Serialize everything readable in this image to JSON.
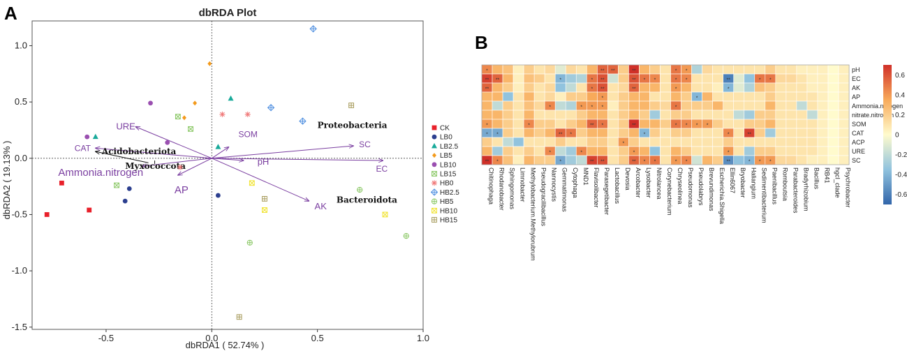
{
  "panel_a": {
    "letter": "A",
    "title": "dbRDA Plot",
    "xlabel": "dbRDA1 ( 52.74% )",
    "ylabel": "dbRDA2 ( 19.13% )",
    "xticks": [
      "-0.5",
      "0.0",
      "0.5",
      "1.0"
    ],
    "yticks": [
      "1.0",
      "0.5",
      "0.0",
      "-0.5",
      "-1.0",
      "-1.5"
    ]
  },
  "panel_b": {
    "letter": "B"
  },
  "chart_data": [
    {
      "type": "scatter",
      "title": "dbRDA Plot",
      "xlabel": "dbRDA1 ( 52.74% )",
      "ylabel": "dbRDA2 ( 19.13% )",
      "xlim": [
        -0.85,
        1.0
      ],
      "ylim": [
        -1.52,
        1.22
      ],
      "xtick_values": [
        -0.5,
        0.0,
        0.5,
        1.0
      ],
      "ytick_values": [
        1.0,
        0.5,
        0.0,
        -0.5,
        -1.0,
        -1.5
      ],
      "legend_position": "right",
      "series": [
        {
          "name": "CK",
          "color": "#e8202a",
          "marker": "square",
          "points": [
            [
              -0.78,
              -0.5
            ],
            [
              -0.71,
              -0.22
            ],
            [
              -0.58,
              -0.46
            ]
          ]
        },
        {
          "name": "LB0",
          "color": "#2c3f8f",
          "marker": "circle",
          "points": [
            [
              -0.39,
              -0.27
            ],
            [
              -0.41,
              -0.38
            ],
            [
              0.03,
              -0.33
            ]
          ]
        },
        {
          "name": "LB2.5",
          "color": "#19aa9a",
          "marker": "triangle",
          "points": [
            [
              -0.55,
              0.19
            ],
            [
              0.09,
              0.53
            ],
            [
              0.03,
              0.1
            ]
          ]
        },
        {
          "name": "LB5",
          "color": "#f39a1c",
          "marker": "diamond",
          "points": [
            [
              -0.01,
              0.84
            ],
            [
              -0.13,
              0.36
            ],
            [
              -0.08,
              0.49
            ]
          ]
        },
        {
          "name": "LB10",
          "color": "#9a4fb0",
          "marker": "circle",
          "points": [
            [
              -0.29,
              0.49
            ],
            [
              -0.59,
              0.19
            ],
            [
              -0.21,
              0.14
            ]
          ]
        },
        {
          "name": "LB15",
          "color": "#89c764",
          "marker": "square-x",
          "points": [
            [
              -0.16,
              0.37
            ],
            [
              -0.1,
              0.26
            ],
            [
              -0.45,
              -0.24
            ]
          ]
        },
        {
          "name": "HB0",
          "color": "#f07a7a",
          "marker": "asterisk",
          "points": [
            [
              0.05,
              0.39
            ],
            [
              0.17,
              0.39
            ],
            [
              -0.15,
              -0.08
            ]
          ]
        },
        {
          "name": "HB2.5",
          "color": "#4f8fe0",
          "marker": "diamond-plus",
          "points": [
            [
              0.48,
              1.15
            ],
            [
              0.28,
              0.45
            ],
            [
              0.43,
              0.33
            ]
          ]
        },
        {
          "name": "HB5",
          "color": "#89c764",
          "marker": "circle-plus",
          "points": [
            [
              0.7,
              -0.28
            ],
            [
              0.92,
              -0.69
            ],
            [
              0.18,
              -0.75
            ]
          ]
        },
        {
          "name": "HB10",
          "color": "#f0e22a",
          "marker": "square-x",
          "points": [
            [
              0.19,
              -0.22
            ],
            [
              0.25,
              -0.46
            ],
            [
              0.82,
              -0.5
            ]
          ]
        },
        {
          "name": "HB15",
          "color": "#a69a5a",
          "marker": "square-plus",
          "points": [
            [
              0.66,
              0.47
            ],
            [
              0.25,
              -0.36
            ],
            [
              0.13,
              -1.41
            ]
          ]
        }
      ],
      "env_vectors": [
        {
          "label": "URE",
          "x": -0.36,
          "y": 0.28
        },
        {
          "label": "CAT",
          "x": -0.55,
          "y": 0.09
        },
        {
          "label": "Ammonia.nitrogen",
          "x": -0.33,
          "y": -0.07
        },
        {
          "label": "AP",
          "x": -0.16,
          "y": -0.15
        },
        {
          "label": "SOM",
          "x": 0.08,
          "y": 0.1
        },
        {
          "label": "pH",
          "x": 0.15,
          "y": -0.02
        },
        {
          "label": "SC",
          "x": 0.67,
          "y": 0.11
        },
        {
          "label": "EC",
          "x": 0.81,
          "y": -0.02
        },
        {
          "label": "AK",
          "x": 0.46,
          "y": -0.38
        }
      ],
      "taxa_labels": [
        {
          "label": "Proteobacteria",
          "x": 0.5,
          "y": 0.3
        },
        {
          "label": "Acidobacteriota",
          "x": -0.52,
          "y": 0.06
        },
        {
          "label": "Myxococcota",
          "x": -0.41,
          "y": -0.07
        },
        {
          "label": "Bacteroidota",
          "x": 0.59,
          "y": -0.37
        }
      ]
    },
    {
      "type": "heatmap",
      "rows": [
        "pH",
        "EC",
        "AK",
        "AP",
        "Ammonia.nitrogen",
        "nitrate.nitrogen",
        "SOM",
        "CAT",
        "ACP",
        "URE",
        "SC"
      ],
      "columns": [
        "Chitinophaga",
        "Rhodanobacter",
        "Sphingomonas",
        "Limnobacter",
        "Methylobacterium.Methylorubrum",
        "Pseudogracilibacillus",
        "Nannocystis",
        "Gemmatimonas",
        "Cytophaga",
        "MND1",
        "Flavisolibacter",
        "Parasegetibacter",
        "Lactobacillus",
        "Devosia",
        "Arcobacter",
        "Lysobacter",
        "Nitrolancea",
        "Corynebacterium",
        "Chryseolinea",
        "Pseudomonas",
        "Pseudolabrys",
        "Brevundimonas",
        "Escherichia.Shigella",
        "Ellin6067",
        "Bryobacter",
        "Haliangium",
        "Sedimentibacterium",
        "Paenibacillus",
        "Romboutsia",
        "Parabacteroides",
        "Bradyrhizobium",
        "Bacillus",
        "RB41",
        "hgcI_clade",
        "Psychrobacter"
      ],
      "colorbar_ticks": [
        "0.6",
        "0.4",
        "0.2",
        "0",
        "-0.2",
        "-0.4",
        "-0.6"
      ],
      "colorbar_range": [
        -0.7,
        0.7
      ],
      "values": [
        [
          0.45,
          0.3,
          0.25,
          0.05,
          0.2,
          0.1,
          0.15,
          -0.1,
          0.15,
          0.1,
          0.3,
          0.55,
          0.55,
          0.2,
          0.7,
          0.3,
          0.2,
          0.1,
          0.5,
          0.4,
          -0.25,
          0.15,
          0.1,
          0.1,
          0.1,
          0.1,
          0.1,
          0.2,
          0.1,
          0.1,
          0.05,
          0.05,
          0.05,
          0.0,
          0.05
        ],
        [
          0.65,
          0.55,
          0.3,
          0.05,
          0.25,
          0.2,
          0.1,
          -0.4,
          -0.3,
          -0.25,
          0.5,
          0.6,
          -0.15,
          0.2,
          0.6,
          0.5,
          0.45,
          0.1,
          0.5,
          0.45,
          0.1,
          0.1,
          0.1,
          -0.6,
          -0.1,
          -0.35,
          0.5,
          0.5,
          0.15,
          0.15,
          0.1,
          0.05,
          0.05,
          0.0,
          0.05
        ],
        [
          0.55,
          0.3,
          0.2,
          0.05,
          0.2,
          0.1,
          0.15,
          -0.35,
          -0.2,
          0.1,
          0.5,
          0.6,
          0.1,
          0.15,
          0.55,
          0.3,
          0.3,
          0.1,
          0.4,
          0.3,
          0.1,
          0.1,
          0.05,
          -0.4,
          -0.1,
          -0.25,
          0.25,
          0.2,
          0.1,
          0.1,
          0.1,
          0.05,
          0.05,
          0.0,
          0.05
        ],
        [
          0.3,
          0.3,
          -0.35,
          0.1,
          0.3,
          0.1,
          0.15,
          0.05,
          0.2,
          0.2,
          0.35,
          0.4,
          0.1,
          0.2,
          0.3,
          0.3,
          0.1,
          0.1,
          0.3,
          0.2,
          -0.4,
          0.3,
          0.1,
          0.1,
          0.1,
          0.1,
          0.1,
          0.2,
          0.1,
          0.1,
          0.1,
          0.1,
          0.05,
          0.0,
          0.05
        ],
        [
          0.3,
          -0.2,
          0.2,
          0.1,
          0.25,
          0.15,
          0.45,
          -0.2,
          -0.25,
          0.4,
          0.4,
          0.4,
          0.05,
          0.2,
          0.3,
          0.3,
          0.2,
          0.15,
          0.5,
          0.2,
          0.2,
          0.2,
          0.3,
          0.1,
          0.1,
          0.1,
          0.1,
          0.3,
          0.1,
          0.1,
          -0.2,
          0.1,
          0.05,
          0.0,
          0.05
        ],
        [
          0.3,
          0.3,
          0.2,
          0.1,
          0.3,
          0.1,
          0.1,
          0.1,
          0.1,
          0.2,
          0.3,
          0.3,
          0.1,
          0.2,
          0.3,
          0.2,
          -0.3,
          0.1,
          0.2,
          0.2,
          0.1,
          0.1,
          0.1,
          0.1,
          -0.2,
          -0.3,
          0.2,
          0.2,
          0.1,
          0.1,
          0.1,
          -0.2,
          0.05,
          0.0,
          0.05
        ],
        [
          0.4,
          0.3,
          0.2,
          0.1,
          0.45,
          0.2,
          0.2,
          0.1,
          0.2,
          0.3,
          0.55,
          0.5,
          0.1,
          0.2,
          0.7,
          0.3,
          0.3,
          0.2,
          0.5,
          0.45,
          0.4,
          0.4,
          0.2,
          0.1,
          0.1,
          0.2,
          0.2,
          0.3,
          0.1,
          0.1,
          0.1,
          0.1,
          0.05,
          0.0,
          0.05
        ],
        [
          -0.45,
          -0.45,
          0.2,
          0.1,
          0.3,
          0.2,
          0.3,
          0.55,
          0.5,
          0.2,
          0.3,
          0.3,
          0.1,
          0.2,
          0.3,
          -0.4,
          0.2,
          0.1,
          0.2,
          0.2,
          0.1,
          0.1,
          0.1,
          0.45,
          0.1,
          0.65,
          0.2,
          -0.3,
          0.1,
          0.1,
          0.1,
          0.1,
          0.05,
          0.0,
          0.05
        ],
        [
          0.2,
          0.1,
          -0.2,
          -0.35,
          0.1,
          0.1,
          0.1,
          0.2,
          0.1,
          0.1,
          0.2,
          0.2,
          0.1,
          0.4,
          0.2,
          0.1,
          0.1,
          0.1,
          0.1,
          0.1,
          0.1,
          0.1,
          0.1,
          0.2,
          0.1,
          0.1,
          0.1,
          0.1,
          0.1,
          0.1,
          0.1,
          0.1,
          0.05,
          0.0,
          0.05
        ],
        [
          0.3,
          -0.3,
          0.2,
          0.1,
          0.2,
          0.1,
          0.45,
          -0.2,
          -0.3,
          0.45,
          0.3,
          0.3,
          0.1,
          0.2,
          0.4,
          0.3,
          -0.35,
          0.1,
          0.3,
          0.2,
          0.1,
          0.1,
          0.1,
          0.4,
          0.1,
          -0.3,
          0.2,
          0.2,
          0.1,
          0.1,
          0.1,
          0.1,
          0.05,
          0.0,
          0.05
        ],
        [
          0.7,
          0.45,
          0.25,
          0.05,
          0.3,
          0.2,
          0.2,
          -0.45,
          -0.3,
          -0.2,
          0.65,
          0.6,
          0.1,
          0.2,
          0.55,
          0.45,
          0.5,
          0.1,
          0.4,
          0.45,
          -0.15,
          0.3,
          0.2,
          -0.55,
          -0.35,
          -0.4,
          0.4,
          0.4,
          0.15,
          0.15,
          0.1,
          0.05,
          0.05,
          0.0,
          0.05
        ]
      ],
      "stars": [
        "..............*.....",
        "",
        "",
        "",
        "",
        "",
        "",
        "",
        "",
        "",
        ""
      ]
    }
  ]
}
